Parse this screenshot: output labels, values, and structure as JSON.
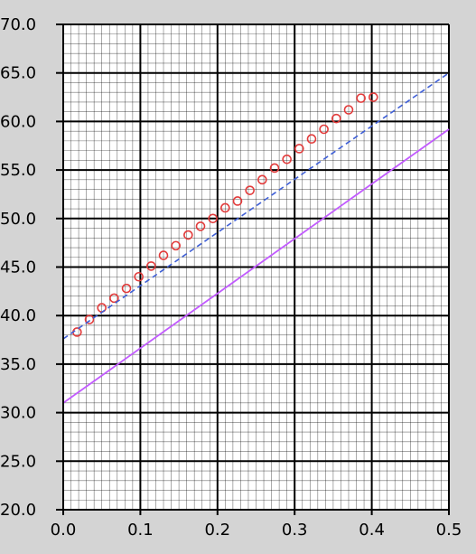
{
  "chart_data": {
    "type": "scatter",
    "xlim": [
      0.0,
      0.5
    ],
    "ylim": [
      20.0,
      70.0
    ],
    "x_ticks": [
      "0.0",
      "0.1",
      "0.2",
      "0.3",
      "0.4",
      "0.5"
    ],
    "y_ticks": [
      "20.0",
      "25.0",
      "30.0",
      "35.0",
      "40.0",
      "45.0",
      "50.0",
      "55.0",
      "60.0",
      "65.0",
      "70.0"
    ],
    "grid": true,
    "minor_grid": true,
    "series": [
      {
        "type": "scatter",
        "marker": "circle-open",
        "color": "#e23b3b",
        "x": [
          0.018,
          0.034,
          0.05,
          0.066,
          0.082,
          0.098,
          0.114,
          0.13,
          0.146,
          0.162,
          0.178,
          0.194,
          0.21,
          0.226,
          0.242,
          0.258,
          0.274,
          0.29,
          0.306,
          0.322,
          0.338,
          0.354,
          0.37,
          0.386,
          0.402
        ],
        "y": [
          38.3,
          39.6,
          40.8,
          41.8,
          42.8,
          44.0,
          45.1,
          46.2,
          47.2,
          48.3,
          49.2,
          50.0,
          51.1,
          51.8,
          52.9,
          54.0,
          55.2,
          56.1,
          57.2,
          58.2,
          59.2,
          60.3,
          61.2,
          62.4,
          62.5
        ]
      },
      {
        "type": "line",
        "style": "dashed",
        "color": "#3f5fd6",
        "x": [
          0.0,
          0.5
        ],
        "y": [
          37.6,
          65.0
        ]
      },
      {
        "type": "line",
        "style": "solid",
        "color": "#c25bff",
        "x": [
          0.0,
          0.5
        ],
        "y": [
          31.0,
          59.2
        ]
      }
    ]
  }
}
